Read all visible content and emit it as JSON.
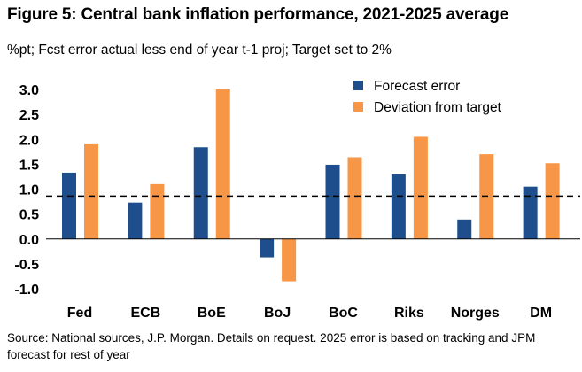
{
  "title": "Figure 5: Central bank inflation performance, 2021-2025 average",
  "subtitle": "%pt; Fcst error actual less end of year t-1 proj; Target set to 2%",
  "source": "Source: National sources, J.P. Morgan. Details on request. 2025 error is based on tracking and JPM forecast for rest of year",
  "chart_data": {
    "type": "bar",
    "title": "Figure 5: Central bank inflation performance, 2021-2025 average",
    "ylabel": "%pt",
    "ylim": [
      -1.0,
      3.0
    ],
    "yticks": [
      "3.0",
      "2.5",
      "2.0",
      "1.5",
      "1.0",
      "0.5",
      "0.0",
      "-0.5",
      "-1.0"
    ],
    "categories": [
      "Fed",
      "ECB",
      "BoE",
      "BoJ",
      "BoC",
      "Riks",
      "Norges",
      "DM"
    ],
    "series": [
      {
        "name": "Forecast error",
        "color": "#1f4e8c",
        "values": [
          1.33,
          0.73,
          1.84,
          -0.37,
          1.49,
          1.3,
          0.39,
          1.05
        ]
      },
      {
        "name": "Deviation from target",
        "color": "#f79646",
        "values": [
          1.9,
          1.1,
          3.0,
          -0.85,
          1.64,
          2.05,
          1.7,
          1.52
        ]
      }
    ],
    "reference_line": {
      "value": 0.86,
      "style": "dashed"
    },
    "legend": "top-right"
  }
}
